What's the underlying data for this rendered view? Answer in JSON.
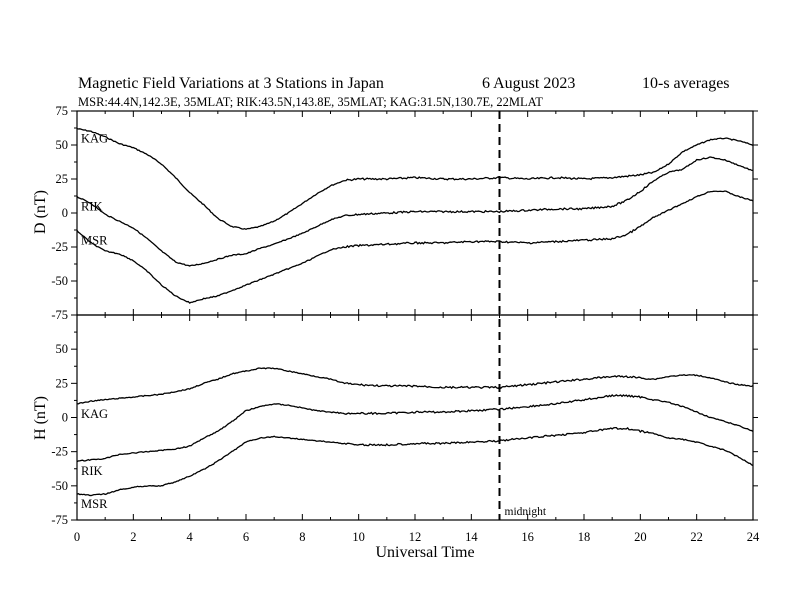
{
  "title": {
    "main": "Magnetic Field Variations at 3 Stations in Japan",
    "date": "6   August  2023",
    "averaging": "10-s averages"
  },
  "subtitle": "MSR:44.4N,142.3E, 35MLAT;  RIK:43.5N,143.8E, 35MLAT;  KAG:31.5N,130.7E, 22MLAT",
  "chart_data": [
    {
      "type": "line",
      "panel": "top",
      "ylabel": "D (nT)",
      "xlabel": "",
      "xlim": [
        0,
        24
      ],
      "ylim": [
        -75,
        75
      ],
      "yticks": [
        "75",
        "50",
        "25",
        "0",
        "-25",
        "-50",
        "-75"
      ],
      "grid": false,
      "series": [
        {
          "name": "KAG",
          "x": [
            0,
            0.5,
            1,
            1.5,
            2,
            2.5,
            3,
            3.5,
            4,
            4.5,
            5,
            5.5,
            6,
            6.5,
            7,
            7.5,
            8,
            8.5,
            9,
            9.5,
            10,
            11,
            12,
            13,
            14,
            15,
            16,
            17,
            18,
            19,
            19.5,
            20,
            20.5,
            21,
            21.5,
            22,
            22.5,
            23,
            23.5,
            24
          ],
          "values": [
            62,
            60,
            56,
            51,
            48,
            43,
            36,
            26,
            15,
            6,
            -4,
            -10,
            -12,
            -10,
            -6,
            0,
            7,
            14,
            20,
            24,
            25,
            25,
            26,
            25,
            25,
            26,
            25,
            26,
            25,
            26,
            27,
            28,
            30,
            36,
            45,
            50,
            54,
            55,
            53,
            50
          ]
        },
        {
          "name": "RIK",
          "x": [
            0,
            0.5,
            1,
            1.5,
            2,
            2.5,
            3,
            3.5,
            4,
            4.5,
            5,
            5.5,
            6,
            6.5,
            7,
            7.5,
            8,
            8.5,
            9,
            9.5,
            10,
            11,
            12,
            13,
            14,
            15,
            16,
            17,
            18,
            19,
            19.5,
            20,
            20.5,
            21,
            21.5,
            22,
            22.5,
            23,
            23.5,
            24
          ],
          "values": [
            12,
            7,
            -1,
            -6,
            -11,
            -19,
            -28,
            -36,
            -39,
            -37,
            -34,
            -31,
            -30,
            -26,
            -23,
            -19,
            -15,
            -10,
            -5,
            -2,
            -1,
            0,
            1,
            1,
            1,
            1,
            2,
            3,
            3,
            5,
            9,
            16,
            24,
            30,
            32,
            39,
            41,
            39,
            35,
            31
          ]
        },
        {
          "name": "MSR",
          "x": [
            0,
            0.5,
            1,
            1.5,
            2,
            2.5,
            3,
            3.5,
            4,
            4.5,
            5,
            5.5,
            6,
            6.5,
            7,
            7.5,
            8,
            8.5,
            9,
            9.5,
            10,
            11,
            12,
            13,
            14,
            15,
            16,
            17,
            18,
            19,
            19.5,
            20,
            20.5,
            21,
            21.5,
            22,
            22.5,
            23,
            23.5,
            24
          ],
          "values": [
            -13,
            -22,
            -28,
            -30,
            -35,
            -43,
            -53,
            -61,
            -66,
            -63,
            -61,
            -57,
            -53,
            -49,
            -45,
            -41,
            -37,
            -32,
            -27,
            -25,
            -24,
            -23,
            -22,
            -22,
            -21,
            -21,
            -22,
            -21,
            -20,
            -19,
            -16,
            -10,
            -3,
            2,
            7,
            12,
            16,
            16,
            12,
            9
          ]
        }
      ]
    },
    {
      "type": "line",
      "panel": "bottom",
      "ylabel": "H (nT)",
      "xlabel": "Universal Time",
      "xlim": [
        0,
        24
      ],
      "ylim": [
        -75,
        75
      ],
      "xticks": [
        "0",
        "2",
        "4",
        "6",
        "8",
        "10",
        "12",
        "14",
        "16",
        "18",
        "20",
        "22",
        "24"
      ],
      "yticks": [
        "75",
        "50",
        "25",
        "0",
        "-25",
        "-50",
        "-75"
      ],
      "grid": false,
      "series": [
        {
          "name": "KAG",
          "x": [
            0,
            0.5,
            1,
            1.5,
            2,
            2.5,
            3,
            3.5,
            4,
            4.5,
            5,
            5.5,
            6,
            6.5,
            7,
            7.5,
            8,
            8.5,
            9,
            9.5,
            10,
            11,
            12,
            13,
            14,
            15,
            16,
            17,
            18,
            19,
            19.5,
            20,
            20.5,
            21,
            21.5,
            22,
            22.5,
            23,
            23.5,
            24
          ],
          "values": [
            10,
            12,
            13,
            14,
            15,
            16,
            17,
            19,
            21,
            25,
            28,
            32,
            34,
            36,
            36,
            34,
            32,
            30,
            28,
            25,
            24,
            23,
            23,
            22,
            22,
            22,
            24,
            26,
            28,
            30,
            30,
            29,
            28,
            30,
            31,
            31,
            29,
            26,
            24,
            23
          ]
        },
        {
          "name": "RIK",
          "x": [
            0,
            0.5,
            1,
            1.5,
            2,
            2.5,
            3,
            3.5,
            4,
            4.5,
            5,
            5.5,
            6,
            6.5,
            7,
            7.5,
            8,
            8.5,
            9,
            9.5,
            10,
            11,
            12,
            13,
            14,
            15,
            16,
            17,
            18,
            19,
            19.5,
            20,
            20.5,
            21,
            21.5,
            22,
            22.5,
            23,
            23.5,
            24
          ],
          "values": [
            -32,
            -31,
            -30,
            -27,
            -26,
            -25,
            -24,
            -23,
            -21,
            -15,
            -10,
            -3,
            5,
            8,
            10,
            9,
            7,
            5,
            4,
            3,
            3,
            3,
            4,
            4,
            5,
            6,
            8,
            10,
            13,
            16,
            16,
            15,
            13,
            11,
            8,
            4,
            0,
            -3,
            -6,
            -10
          ]
        },
        {
          "name": "MSR",
          "x": [
            0,
            0.5,
            1,
            1.5,
            2,
            2.5,
            3,
            3.5,
            4,
            4.5,
            5,
            5.5,
            6,
            6.5,
            7,
            7.5,
            8,
            8.5,
            9,
            9.5,
            10,
            11,
            12,
            13,
            14,
            15,
            16,
            17,
            18,
            19,
            19.5,
            20,
            20.5,
            21,
            21.5,
            22,
            22.5,
            23,
            23.5,
            24
          ],
          "values": [
            -56,
            -57,
            -56,
            -53,
            -51,
            -50,
            -50,
            -47,
            -43,
            -38,
            -32,
            -25,
            -18,
            -15,
            -14,
            -15,
            -16,
            -17,
            -18,
            -19,
            -20,
            -20,
            -19,
            -19,
            -18,
            -17,
            -15,
            -13,
            -11,
            -8,
            -8,
            -10,
            -12,
            -15,
            -16,
            -18,
            -21,
            -24,
            -29,
            -35
          ]
        }
      ]
    }
  ],
  "annotations": {
    "midnight_ut": 15,
    "midnight_label": "midnight"
  }
}
